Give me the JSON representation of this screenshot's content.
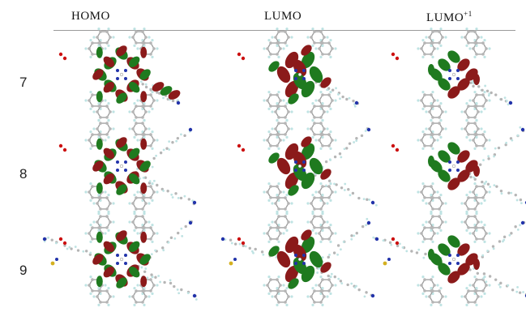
{
  "columns": [
    {
      "id": "homo",
      "label": "HOMO",
      "sup": ""
    },
    {
      "id": "lumo",
      "label": "LUMO",
      "sup": ""
    },
    {
      "id": "lumo1",
      "label": "LUMO",
      "sup": "+1"
    }
  ],
  "rows": [
    {
      "label": "7"
    },
    {
      "label": "8"
    },
    {
      "label": "9"
    }
  ],
  "colors": {
    "lobe_positive": "#8b1a1a",
    "lobe_negative": "#1f7a1f",
    "atom_c": "#b5b5b5",
    "atom_h": "#bfe3e3",
    "atom_n": "#2233aa",
    "atom_o": "#cc1111",
    "atom_s": "#d4b020"
  }
}
